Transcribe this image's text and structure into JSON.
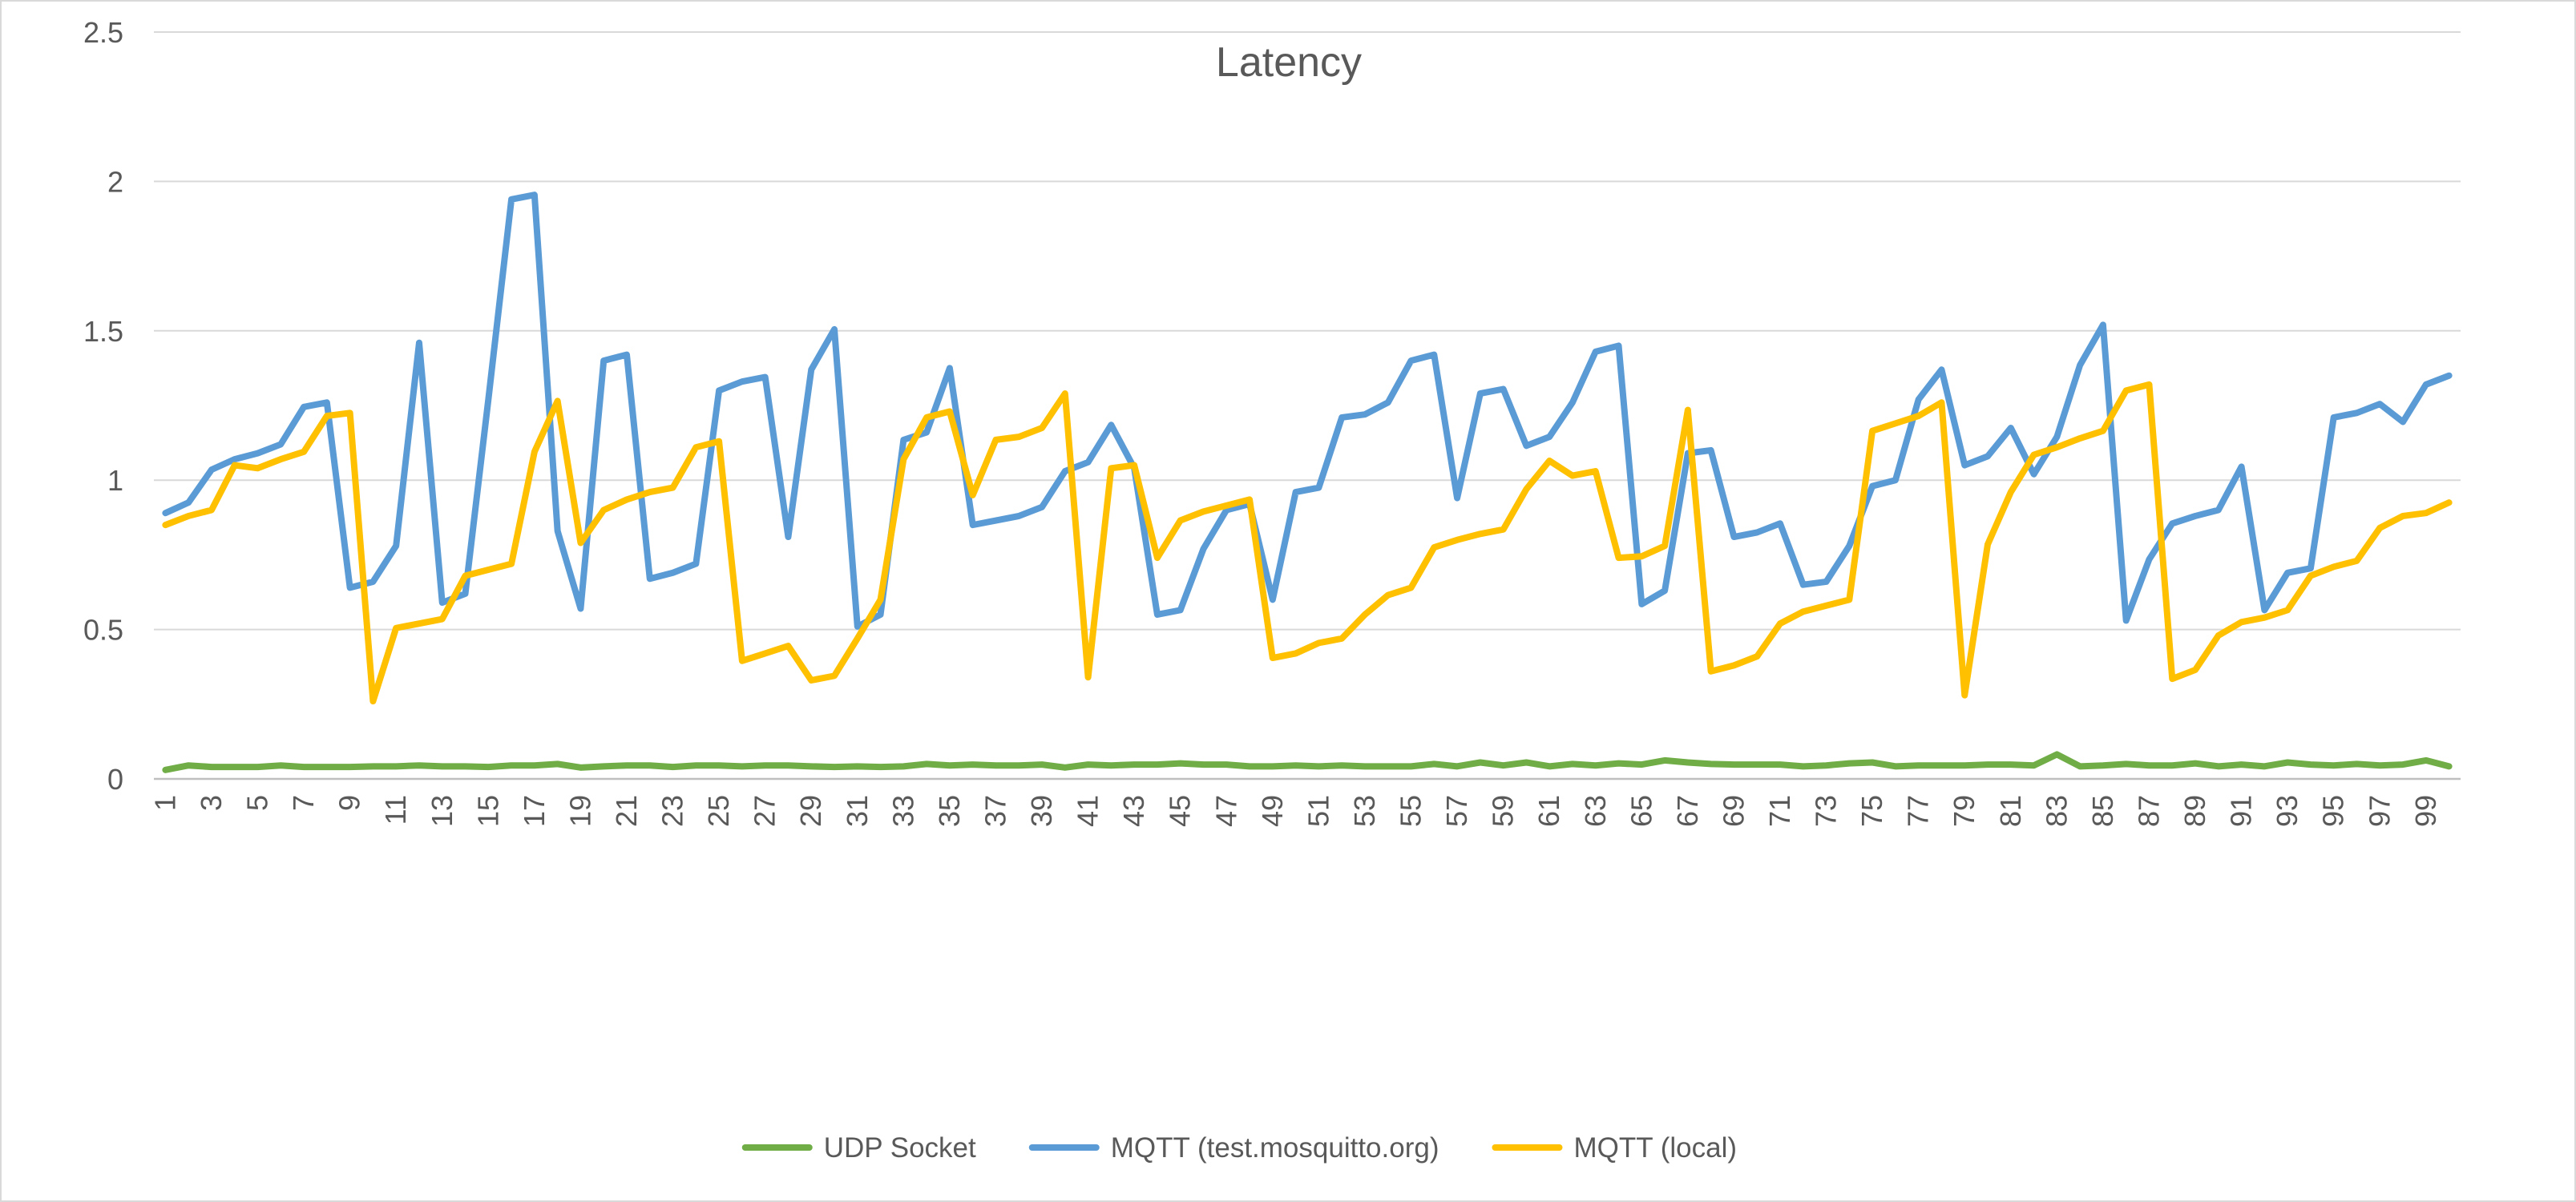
{
  "chart_data": {
    "type": "line",
    "title": "Latency",
    "xlabel": "",
    "ylabel": "",
    "ylim": [
      0,
      2.5
    ],
    "yticks": [
      "0",
      "0.5",
      "1",
      "1.5",
      "2",
      "2.5"
    ],
    "x": [
      1,
      2,
      3,
      4,
      5,
      6,
      7,
      8,
      9,
      10,
      11,
      12,
      13,
      14,
      15,
      16,
      17,
      18,
      19,
      20,
      21,
      22,
      23,
      24,
      25,
      26,
      27,
      28,
      29,
      30,
      31,
      32,
      33,
      34,
      35,
      36,
      37,
      38,
      39,
      40,
      41,
      42,
      43,
      44,
      45,
      46,
      47,
      48,
      49,
      50,
      51,
      52,
      53,
      54,
      55,
      56,
      57,
      58,
      59,
      60,
      61,
      62,
      63,
      64,
      65,
      66,
      67,
      68,
      69,
      70,
      71,
      72,
      73,
      74,
      75,
      76,
      77,
      78,
      79,
      80,
      81,
      82,
      83,
      84,
      85,
      86,
      87,
      88,
      89,
      90,
      91,
      92,
      93,
      94,
      95,
      96,
      97,
      98,
      99,
      100
    ],
    "xtick_labels": [
      "1",
      "3",
      "5",
      "7",
      "9",
      "11",
      "13",
      "15",
      "17",
      "19",
      "21",
      "23",
      "25",
      "27",
      "29",
      "31",
      "33",
      "35",
      "37",
      "39",
      "41",
      "43",
      "45",
      "47",
      "49",
      "51",
      "53",
      "55",
      "57",
      "59",
      "61",
      "63",
      "65",
      "67",
      "69",
      "71",
      "73",
      "75",
      "77",
      "79",
      "81",
      "83",
      "85",
      "87",
      "89",
      "91",
      "93",
      "95",
      "97",
      "99"
    ],
    "grid": true,
    "legend_position": "bottom",
    "series": [
      {
        "name": "UDP Socket",
        "color": "#70ad47",
        "values": [
          0.03,
          0.045,
          0.04,
          0.04,
          0.04,
          0.045,
          0.04,
          0.04,
          0.04,
          0.042,
          0.042,
          0.045,
          0.042,
          0.042,
          0.04,
          0.045,
          0.045,
          0.05,
          0.038,
          0.042,
          0.045,
          0.045,
          0.04,
          0.045,
          0.045,
          0.042,
          0.045,
          0.045,
          0.042,
          0.04,
          0.042,
          0.04,
          0.042,
          0.05,
          0.045,
          0.048,
          0.045,
          0.045,
          0.048,
          0.038,
          0.048,
          0.045,
          0.048,
          0.048,
          0.052,
          0.048,
          0.048,
          0.042,
          0.042,
          0.045,
          0.042,
          0.045,
          0.042,
          0.042,
          0.042,
          0.05,
          0.042,
          0.055,
          0.045,
          0.055,
          0.042,
          0.05,
          0.045,
          0.052,
          0.048,
          0.062,
          0.055,
          0.05,
          0.048,
          0.048,
          0.048,
          0.042,
          0.045,
          0.052,
          0.055,
          0.042,
          0.045,
          0.045,
          0.045,
          0.048,
          0.048,
          0.045,
          0.082,
          0.042,
          0.045,
          0.05,
          0.045,
          0.045,
          0.052,
          0.042,
          0.048,
          0.042,
          0.055,
          0.048,
          0.045,
          0.05,
          0.045,
          0.048,
          0.062,
          0.042
        ]
      },
      {
        "name": "MQTT (test.mosquitto.org)",
        "color": "#5b9bd5",
        "values": [
          0.89,
          0.925,
          1.035,
          1.07,
          1.09,
          1.12,
          1.245,
          1.26,
          0.64,
          0.66,
          0.78,
          1.46,
          0.59,
          0.62,
          1.27,
          1.94,
          1.955,
          0.83,
          0.57,
          1.4,
          1.42,
          0.67,
          0.69,
          0.72,
          1.3,
          1.33,
          1.345,
          0.81,
          1.37,
          1.505,
          0.51,
          0.55,
          1.135,
          1.16,
          1.375,
          0.85,
          0.865,
          0.88,
          0.91,
          1.03,
          1.06,
          1.185,
          1.04,
          0.55,
          0.565,
          0.77,
          0.9,
          0.92,
          0.6,
          0.96,
          0.975,
          1.21,
          1.22,
          1.26,
          1.4,
          1.42,
          0.94,
          1.29,
          1.305,
          1.115,
          1.145,
          1.26,
          1.43,
          1.45,
          0.585,
          0.63,
          1.09,
          1.1,
          0.81,
          0.825,
          0.855,
          0.65,
          0.66,
          0.78,
          0.98,
          1.0,
          1.27,
          1.37,
          1.05,
          1.08,
          1.175,
          1.02,
          1.145,
          1.385,
          1.52,
          0.53,
          0.735,
          0.855,
          0.88,
          0.9,
          1.045,
          0.565,
          0.69,
          0.705,
          1.21,
          1.225,
          1.255,
          1.195,
          1.32,
          1.35
        ]
      },
      {
        "name": "MQTT (local)",
        "color": "#ffc000",
        "values": [
          0.85,
          0.88,
          0.9,
          1.05,
          1.04,
          1.07,
          1.095,
          1.215,
          1.225,
          0.26,
          0.505,
          0.52,
          0.535,
          0.68,
          0.7,
          0.72,
          1.095,
          1.265,
          0.79,
          0.9,
          0.935,
          0.96,
          0.975,
          1.11,
          1.13,
          0.395,
          0.42,
          0.445,
          0.33,
          0.345,
          0.47,
          0.6,
          1.07,
          1.21,
          1.23,
          0.95,
          1.135,
          1.145,
          1.175,
          1.29,
          0.34,
          1.04,
          1.05,
          0.74,
          0.865,
          0.895,
          0.915,
          0.935,
          0.405,
          0.42,
          0.455,
          0.47,
          0.55,
          0.615,
          0.64,
          0.775,
          0.8,
          0.82,
          0.835,
          0.97,
          1.065,
          1.015,
          1.03,
          0.74,
          0.745,
          0.78,
          1.235,
          0.36,
          0.38,
          0.41,
          0.52,
          0.56,
          0.58,
          0.6,
          1.165,
          1.19,
          1.215,
          1.26,
          0.28,
          0.785,
          0.96,
          1.085,
          1.11,
          1.14,
          1.165,
          1.3,
          1.32,
          0.335,
          0.365,
          0.48,
          0.525,
          0.54,
          0.565,
          0.68,
          0.71,
          0.73,
          0.84,
          0.88,
          0.89,
          0.925
        ]
      }
    ]
  }
}
